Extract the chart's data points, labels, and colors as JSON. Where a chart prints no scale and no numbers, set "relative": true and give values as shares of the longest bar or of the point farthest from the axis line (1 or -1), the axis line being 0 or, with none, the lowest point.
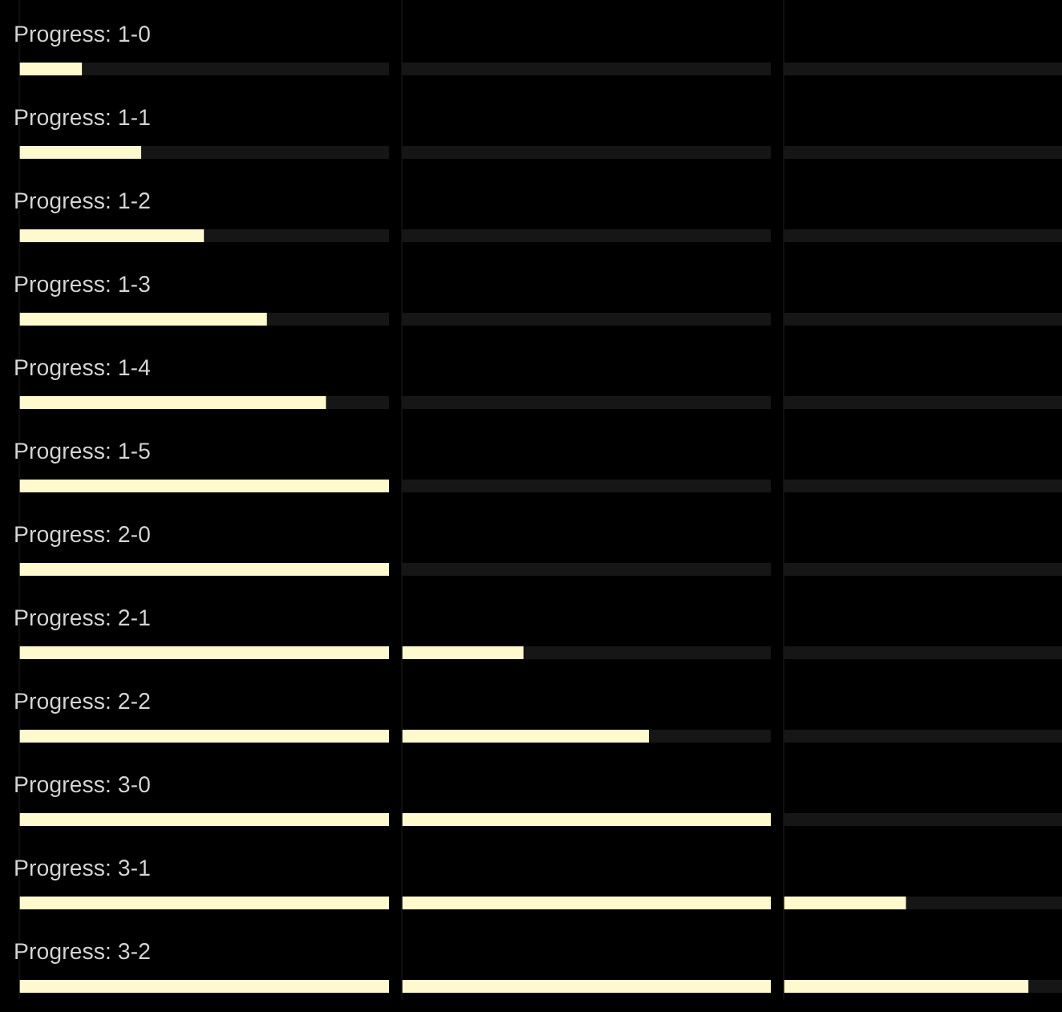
{
  "chart_data": [
    {
      "type": "bar",
      "orientation": "horizontal",
      "stacked": true,
      "relative": true,
      "categories": [
        "Progress: 1-0",
        "Progress: 1-1",
        "Progress: 1-2",
        "Progress: 1-3",
        "Progress: 1-4",
        "Progress: 1-5",
        "Progress: 2-0",
        "Progress: 2-1",
        "Progress: 2-2",
        "Progress: 3-0",
        "Progress: 3-1",
        "Progress: 3-2"
      ],
      "series": [
        {
          "color": "#fffacd",
          "values": [
            0.17,
            0.33,
            0.5,
            0.67,
            0.83,
            1,
            1,
            1,
            1,
            1,
            1,
            1
          ]
        },
        {
          "color": "#161616",
          "values": [
            0.83,
            0.67,
            0.5,
            0.33,
            0.17,
            null,
            null,
            null,
            null,
            null,
            null,
            null
          ]
        }
      ]
    },
    {
      "type": "bar",
      "orientation": "horizontal",
      "stacked": true,
      "relative": true,
      "categories": [
        null,
        null,
        null,
        null,
        null,
        null,
        null,
        null,
        null,
        null,
        null,
        null
      ],
      "series": [
        {
          "color": "#fffacd",
          "values": [
            null,
            null,
            null,
            null,
            null,
            null,
            null,
            0.33,
            0.67,
            1,
            1,
            1
          ]
        },
        {
          "color": "#161616",
          "values": [
            1,
            1,
            1,
            1,
            1,
            1,
            1,
            0.67,
            0.33,
            null,
            null,
            null
          ]
        }
      ]
    },
    {
      "type": "bar",
      "orientation": "horizontal",
      "stacked": true,
      "relative": true,
      "categories": [
        null,
        null,
        null,
        null,
        null,
        null,
        null,
        null,
        null,
        null,
        null,
        null
      ],
      "series": [
        {
          "color": "#fffacd",
          "values": [
            null,
            null,
            null,
            null,
            null,
            null,
            null,
            null,
            null,
            null,
            0.44,
            0.88
          ]
        },
        {
          "color": "#161616",
          "values": [
            1,
            1,
            1,
            1,
            1,
            1,
            1,
            1,
            1,
            1,
            0.56,
            0.12
          ]
        }
      ]
    }
  ]
}
